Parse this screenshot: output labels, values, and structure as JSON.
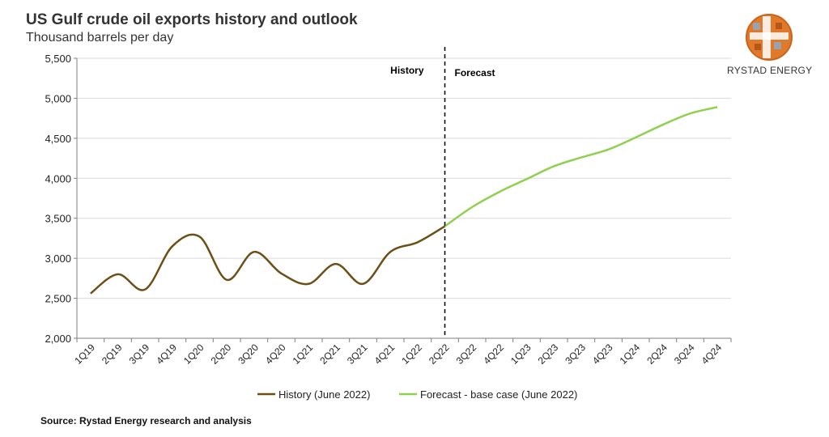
{
  "brand": "RYSTAD ENERGY",
  "source": "Source: Rystad Energy research and analysis",
  "colors": {
    "history": "#6b4f17",
    "forecast": "#8fd14f",
    "grid": "#d9d9d9",
    "axis": "#7f7f7f"
  },
  "chart_data": {
    "type": "line",
    "title": "US Gulf crude oil exports history and outlook",
    "subtitle": "Thousand barrels per day",
    "xlabel": "",
    "ylabel": "Thousand barrels per day",
    "ylim": [
      2000,
      5500
    ],
    "yticks": [
      2000,
      2500,
      3000,
      3500,
      4000,
      4500,
      5000,
      5500
    ],
    "ytick_labels": [
      "2,000",
      "2,500",
      "3,000",
      "3,500",
      "4,000",
      "4,500",
      "5,000",
      "5,500"
    ],
    "categories": [
      "1Q19",
      "2Q19",
      "3Q19",
      "4Q19",
      "1Q20",
      "2Q20",
      "3Q20",
      "4Q20",
      "1Q21",
      "2Q21",
      "3Q21",
      "4Q21",
      "1Q22",
      "2Q22",
      "3Q22",
      "4Q22",
      "1Q23",
      "2Q23",
      "3Q23",
      "4Q23",
      "1Q24",
      "2Q24",
      "3Q24",
      "4Q24"
    ],
    "grid": true,
    "legend_position": "bottom",
    "series": [
      {
        "name": "History (June 2022)",
        "values": [
          2560,
          2800,
          2610,
          3150,
          3270,
          2730,
          3080,
          2810,
          2680,
          2930,
          2680,
          3080,
          3200,
          3400,
          null,
          null,
          null,
          null,
          null,
          null,
          null,
          null,
          null,
          null
        ]
      },
      {
        "name": "Forecast - base case (June 2022)",
        "values": [
          null,
          null,
          null,
          null,
          null,
          null,
          null,
          null,
          null,
          null,
          null,
          null,
          null,
          3400,
          3640,
          3830,
          3990,
          4150,
          4260,
          4360,
          4510,
          4670,
          4810,
          4890
        ]
      }
    ],
    "divider_after": "2Q22",
    "annotations": [
      "History",
      "Forecast"
    ]
  }
}
